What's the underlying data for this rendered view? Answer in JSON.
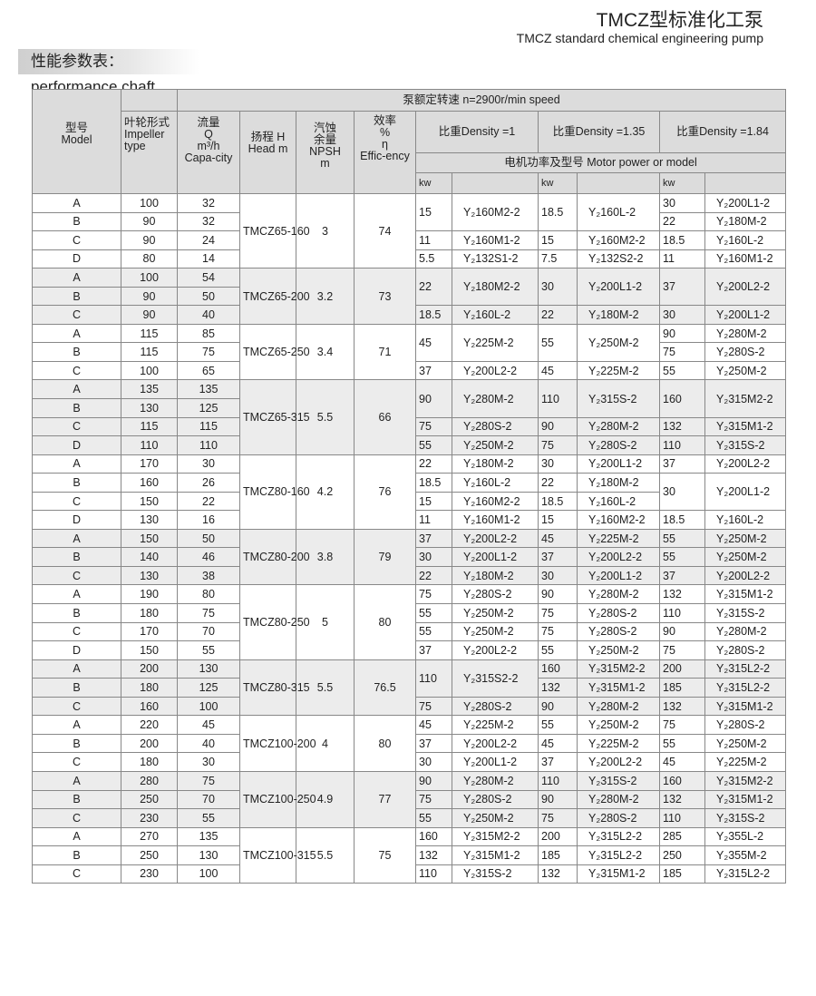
{
  "header": {
    "title": "TMCZ型标准化工泵",
    "subtitle": "TMCZ standard chemical engineering pump",
    "section": "性能参数表：performance chaft"
  },
  "table_head": {
    "model": "型号\nModel",
    "speed": "泵额定转速 n=2900r/min speed",
    "impeller": "叶轮形式\nImpeller type",
    "capacity": "流量\nQ\nm³/h\nCapa-city",
    "head": "扬程 H\nHead m",
    "npsh": "汽蚀\n余量\nNPSH\nm",
    "efficiency": "效率\n%\nη\nEffic-ency",
    "density1": "比重Density =1",
    "density2": "比重Density =1.35",
    "density3": "比重Density =1.84",
    "motor": "电机功率及型号 Motor power or model",
    "kw": "kw"
  },
  "colors": {
    "header_bg": "#dcdcdc",
    "shade_bg": "#ececec",
    "border": "#888888"
  },
  "groups": [
    {
      "model": "TMCZ65-160",
      "npsh": "3",
      "eff": "74",
      "rows": [
        [
          "A",
          "100",
          "32",
          "15",
          "Y₂160M2-2",
          "18.5",
          "Y₂160L-2",
          "30",
          "Y₂200L1-2"
        ],
        [
          "B",
          "90",
          "32",
          null,
          null,
          null,
          null,
          "22",
          "Y₂180M-2"
        ],
        [
          "C",
          "90",
          "24",
          "11",
          "Y₂160M1-2",
          "15",
          "Y₂160M2-2",
          "18.5",
          "Y₂160L-2"
        ],
        [
          "D",
          "80",
          "14",
          "5.5",
          "Y₂132S1-2",
          "7.5",
          "Y₂132S2-2",
          "11",
          "Y₂160M1-2"
        ]
      ]
    },
    {
      "model": "TMCZ65-200",
      "npsh": "3.2",
      "eff": "73",
      "rows": [
        [
          "A",
          "100",
          "54",
          "22",
          "Y₂180M2-2",
          "30",
          "Y₂200L1-2",
          "37",
          "Y₂200L2-2"
        ],
        [
          "B",
          "90",
          "50",
          null,
          null,
          null,
          null,
          null,
          null
        ],
        [
          "C",
          "90",
          "40",
          "18.5",
          "Y₂160L-2",
          "22",
          "Y₂180M-2",
          "30",
          "Y₂200L1-2"
        ]
      ]
    },
    {
      "model": "TMCZ65-250",
      "npsh": "3.4",
      "eff": "71",
      "rows": [
        [
          "A",
          "115",
          "85",
          "45",
          "Y₂225M-2",
          "55",
          "Y₂250M-2",
          "90",
          "Y₂280M-2"
        ],
        [
          "B",
          "115",
          "75",
          null,
          null,
          null,
          null,
          "75",
          "Y₂280S-2"
        ],
        [
          "C",
          "100",
          "65",
          "37",
          "Y₂200L2-2",
          "45",
          "Y₂225M-2",
          "55",
          "Y₂250M-2"
        ]
      ]
    },
    {
      "model": "TMCZ65-315",
      "npsh": "5.5",
      "eff": "66",
      "rows": [
        [
          "A",
          "135",
          "135",
          "90",
          "Y₂280M-2",
          "110",
          "Y₂315S-2",
          "160",
          "Y₂315M2-2"
        ],
        [
          "B",
          "130",
          "125",
          null,
          null,
          null,
          null,
          null,
          null
        ],
        [
          "C",
          "115",
          "115",
          "75",
          "Y₂280S-2",
          "90",
          "Y₂280M-2",
          "132",
          "Y₂315M1-2"
        ],
        [
          "D",
          "110",
          "110",
          "55",
          "Y₂250M-2",
          "75",
          "Y₂280S-2",
          "110",
          "Y₂315S-2"
        ]
      ]
    },
    {
      "model": "TMCZ80-160",
      "npsh": "4.2",
      "eff": "76",
      "rows": [
        [
          "A",
          "170",
          "30",
          "22",
          "Y₂180M-2",
          "30",
          "Y₂200L1-2",
          "37",
          "Y₂200L2-2"
        ],
        [
          "B",
          "160",
          "26",
          "18.5",
          "Y₂160L-2",
          "22",
          "Y₂180M-2",
          "30",
          "Y₂200L1-2"
        ],
        [
          "C",
          "150",
          "22",
          "15",
          "Y₂160M2-2",
          "18.5",
          "Y₂160L-2",
          null,
          null
        ],
        [
          "D",
          "130",
          "16",
          "11",
          "Y₂160M1-2",
          "15",
          "Y₂160M2-2",
          "18.5",
          "Y₂160L-2"
        ]
      ]
    },
    {
      "model": "TMCZ80-200",
      "npsh": "3.8",
      "eff": "79",
      "rows": [
        [
          "A",
          "150",
          "50",
          "37",
          "Y₂200L2-2",
          "45",
          "Y₂225M-2",
          "55",
          "Y₂250M-2"
        ],
        [
          "B",
          "140",
          "46",
          "30",
          "Y₂200L1-2",
          "37",
          "Y₂200L2-2",
          "55",
          "Y₂250M-2"
        ],
        [
          "C",
          "130",
          "38",
          "22",
          "Y₂180M-2",
          "30",
          "Y₂200L1-2",
          "37",
          "Y₂200L2-2"
        ]
      ]
    },
    {
      "model": "TMCZ80-250",
      "npsh": "5",
      "eff": "80",
      "rows": [
        [
          "A",
          "190",
          "80",
          "75",
          "Y₂280S-2",
          "90",
          "Y₂280M-2",
          "132",
          "Y₂315M1-2"
        ],
        [
          "B",
          "180",
          "75",
          "55",
          "Y₂250M-2",
          "75",
          "Y₂280S-2",
          "110",
          "Y₂315S-2"
        ],
        [
          "C",
          "170",
          "70",
          "55",
          "Y₂250M-2",
          "75",
          "Y₂280S-2",
          "90",
          "Y₂280M-2"
        ],
        [
          "D",
          "150",
          "55",
          "37",
          "Y₂200L2-2",
          "55",
          "Y₂250M-2",
          "75",
          "Y₂280S-2"
        ]
      ]
    },
    {
      "model": "TMCZ80-315",
      "npsh": "5.5",
      "eff": "76.5",
      "rows": [
        [
          "A",
          "200",
          "130",
          "110",
          "Y₂315S2-2",
          "160",
          "Y₂315M2-2",
          "200",
          "Y₂315L2-2"
        ],
        [
          "B",
          "180",
          "125",
          null,
          null,
          "132",
          "Y₂315M1-2",
          "185",
          "Y₂315L2-2"
        ],
        [
          "C",
          "160",
          "100",
          "75",
          "Y₂280S-2",
          "90",
          "Y₂280M-2",
          "132",
          "Y₂315M1-2"
        ]
      ]
    },
    {
      "model": "TMCZ100-200",
      "npsh": "4",
      "eff": "80",
      "rows": [
        [
          "A",
          "220",
          "45",
          "45",
          "Y₂225M-2",
          "55",
          "Y₂250M-2",
          "75",
          "Y₂280S-2"
        ],
        [
          "B",
          "200",
          "40",
          "37",
          "Y₂200L2-2",
          "45",
          "Y₂225M-2",
          "55",
          "Y₂250M-2"
        ],
        [
          "C",
          "180",
          "30",
          "30",
          "Y₂200L1-2",
          "37",
          "Y₂200L2-2",
          "45",
          "Y₂225M-2"
        ]
      ]
    },
    {
      "model": "TMCZ100-250",
      "npsh": "4.9",
      "eff": "77",
      "rows": [
        [
          "A",
          "280",
          "75",
          "90",
          "Y₂280M-2",
          "110",
          "Y₂315S-2",
          "160",
          "Y₂315M2-2"
        ],
        [
          "B",
          "250",
          "70",
          "75",
          "Y₂280S-2",
          "90",
          "Y₂280M-2",
          "132",
          "Y₂315M1-2"
        ],
        [
          "C",
          "230",
          "55",
          "55",
          "Y₂250M-2",
          "75",
          "Y₂280S-2",
          "110",
          "Y₂315S-2"
        ]
      ]
    },
    {
      "model": "TMCZ100-315",
      "npsh": "5.5",
      "eff": "75",
      "rows": [
        [
          "A",
          "270",
          "135",
          "160",
          "Y₂315M2-2",
          "200",
          "Y₂315L2-2",
          "285",
          "Y₂355L-2"
        ],
        [
          "B",
          "250",
          "130",
          "132",
          "Y₂315M1-2",
          "185",
          "Y₂315L2-2",
          "250",
          "Y₂355M-2"
        ],
        [
          "C",
          "230",
          "100",
          "110",
          "Y₂315S-2",
          "132",
          "Y₂315M1-2",
          "185",
          "Y₂315L2-2"
        ]
      ]
    }
  ]
}
